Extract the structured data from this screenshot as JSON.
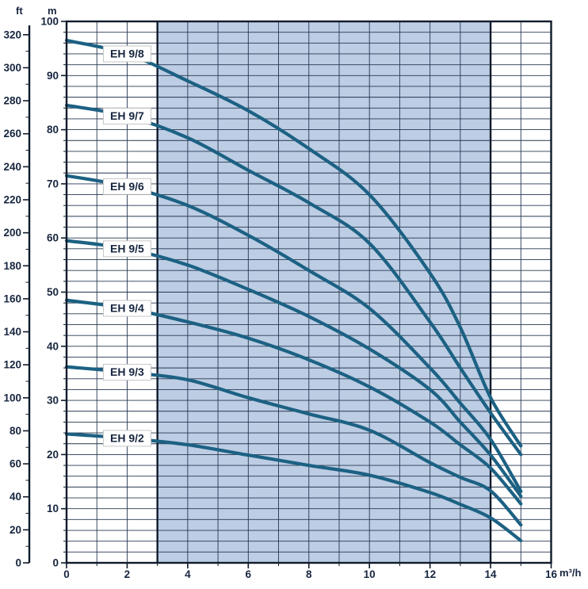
{
  "chart_title": "",
  "axes": {
    "ft_unit": "ft",
    "m_unit": "m",
    "flow_unit": "m³/h",
    "ft_ticks": [
      320,
      300,
      280,
      260,
      240,
      220,
      200,
      180,
      160,
      140,
      120,
      100,
      80,
      60,
      40,
      20,
      0
    ],
    "m_ticks": [
      100,
      90,
      80,
      70,
      60,
      50,
      40,
      30,
      20,
      10,
      0
    ],
    "x_ticks": [
      0,
      2,
      4,
      6,
      8,
      10,
      12,
      14,
      16
    ]
  },
  "colors": {
    "curve": "#1c6183",
    "shading": "#bccde4",
    "grid": "#263750",
    "axis": "#0f1b2b",
    "text": "#17263f",
    "label_box_border": "#c6c6c6",
    "label_box_fill": "#ffffff"
  },
  "chart_data": {
    "type": "line",
    "xlabel": "m³/h",
    "ylabel": "m",
    "ylabel_secondary": "ft",
    "xlim": [
      0,
      16
    ],
    "ylim": [
      0,
      100
    ],
    "ylim_secondary_ft": [
      0,
      328
    ],
    "grid": "on",
    "x": [
      0,
      2,
      4,
      6,
      8,
      10,
      12,
      13,
      14,
      15
    ],
    "series": [
      {
        "name": "EH 9/8",
        "values": [
          96.5,
          94.0,
          89.0,
          83.5,
          76.5,
          68.0,
          53.5,
          43.5,
          30.5,
          21.6
        ]
      },
      {
        "name": "EH 9/7",
        "values": [
          84.5,
          82.5,
          78.5,
          72.5,
          66.5,
          59.0,
          44.5,
          36.0,
          27.7,
          20.0
        ]
      },
      {
        "name": "EH 9/6",
        "values": [
          71.5,
          69.5,
          66.0,
          60.5,
          54.0,
          47.0,
          36.0,
          29.5,
          22.8,
          13.2
        ]
      },
      {
        "name": "EH 9/5",
        "values": [
          59.5,
          58.0,
          55.0,
          50.5,
          45.5,
          39.5,
          32.0,
          26.0,
          19.9,
          12.3
        ]
      },
      {
        "name": "EH 9/4",
        "values": [
          48.5,
          47.0,
          44.5,
          41.5,
          37.5,
          32.5,
          26.0,
          21.8,
          17.5,
          10.9
        ]
      },
      {
        "name": "EH 9/3",
        "values": [
          36.2,
          35.2,
          33.8,
          30.5,
          27.5,
          24.5,
          18.5,
          15.8,
          13.3,
          7.0
        ]
      },
      {
        "name": "EH 9/2",
        "values": [
          23.8,
          23.0,
          21.8,
          19.9,
          18.0,
          16.2,
          13.0,
          10.8,
          8.3,
          4.1
        ]
      }
    ],
    "series_label_at_x": 2,
    "shaded_region": {
      "x_start": 3,
      "x_end": 14
    },
    "legend_position": "on-curve"
  }
}
